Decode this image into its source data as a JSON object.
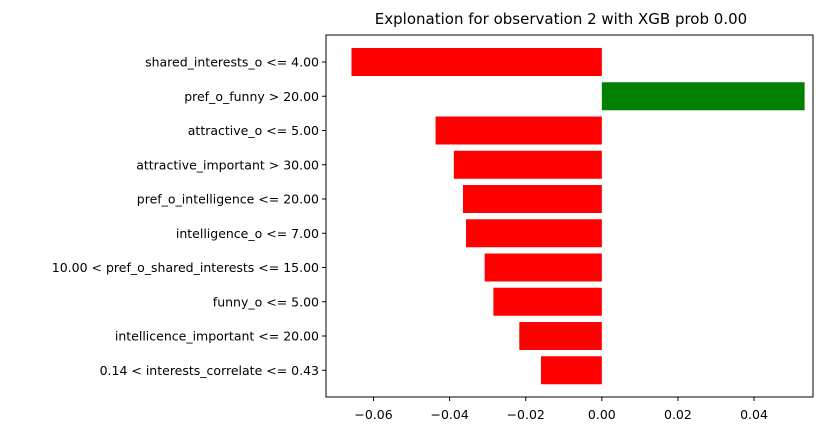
{
  "chart_data": {
    "type": "bar",
    "orientation": "horizontal",
    "title": "Explonation for observation 2 with XGB prob 0.00",
    "xlabel": "",
    "ylabel": "",
    "xlim": [
      -0.0725,
      0.0555
    ],
    "xticks": [
      -0.06,
      -0.04,
      -0.02,
      0.0,
      0.02,
      0.04
    ],
    "xtick_labels": [
      "−0.06",
      "−0.04",
      "−0.02",
      "0.00",
      "0.02",
      "0.04"
    ],
    "grid": false,
    "positive_color": "#008000",
    "negative_color": "#ff0000",
    "categories": [
      "shared_interests_o <= 4.00",
      "pref_o_funny > 20.00",
      "attractive_o <= 5.00",
      "attractive_important > 30.00",
      "pref_o_intelligence <= 20.00",
      "intelligence_o <= 7.00",
      "10.00 < pref_o_shared_interests <= 15.00",
      "funny_o <= 5.00",
      "intellicence_important <= 20.00",
      "0.14 < interests_correlate <= 0.43"
    ],
    "values": [
      -0.0658,
      0.0533,
      -0.0437,
      -0.0389,
      -0.0365,
      -0.0357,
      -0.0308,
      -0.0285,
      -0.0217,
      -0.016
    ]
  }
}
